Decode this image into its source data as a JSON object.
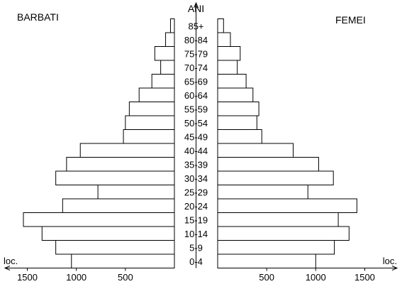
{
  "chart_data": {
    "type": "bar",
    "subtype": "population-pyramid",
    "y_axis_title": "ANI",
    "left_title": "BARBATI",
    "right_title": "FEMEI",
    "x_unit_label": "loc.",
    "categories": [
      "0-4",
      "5-9",
      "10-14",
      "15-19",
      "20-24",
      "25-29",
      "30-34",
      "35-39",
      "40-44",
      "45-49",
      "50-54",
      "55-59",
      "60-64",
      "65-69",
      "70-74",
      "75-79",
      "80-84",
      "85+"
    ],
    "series": [
      {
        "name": "BARBATI",
        "side": "left",
        "values": [
          1050,
          1210,
          1350,
          1540,
          1140,
          780,
          1210,
          1100,
          960,
          520,
          500,
          460,
          360,
          230,
          140,
          200,
          90,
          40
        ]
      },
      {
        "name": "FEMEI",
        "side": "right",
        "values": [
          1000,
          1190,
          1340,
          1230,
          1420,
          920,
          1180,
          1030,
          770,
          450,
          400,
          420,
          360,
          290,
          200,
          230,
          130,
          60
        ]
      }
    ],
    "x_ticks": [
      500,
      1000,
      1500
    ],
    "xlim": [
      0,
      1500
    ],
    "grid": false,
    "legend": "none"
  }
}
